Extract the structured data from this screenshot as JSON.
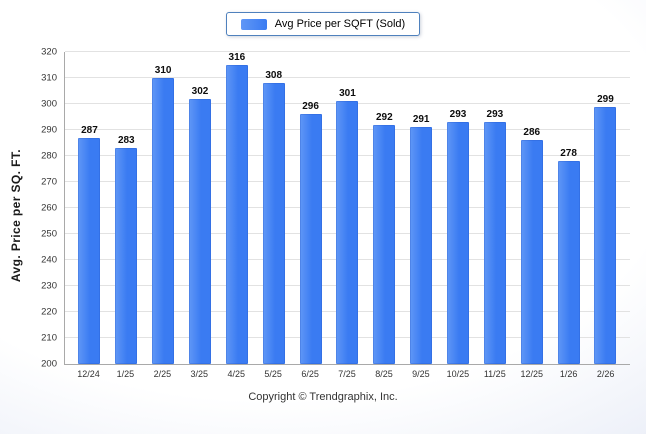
{
  "legend": {
    "swatch": "bar-color-swatch"
  },
  "footer": {
    "text": "Copyright © Trendgraphix, Inc."
  },
  "chart_data": {
    "type": "bar",
    "legend_label": "Avg Price per SQFT (Sold)",
    "categories": [
      "12/24",
      "1/25",
      "2/25",
      "3/25",
      "4/25",
      "5/25",
      "6/25",
      "7/25",
      "8/25",
      "9/25",
      "10/25",
      "11/25",
      "12/25",
      "1/26",
      "2/26"
    ],
    "values": [
      287,
      283,
      310,
      302,
      316,
      308,
      296,
      301,
      292,
      291,
      293,
      293,
      286,
      278,
      299
    ],
    "title": "Avg Price per SQFT (Sold)",
    "xlabel": "",
    "ylabel": "Avg. Price per SQ. FT.",
    "ylim": [
      200,
      320
    ],
    "ytick_step": 10,
    "grid": true,
    "legend_position": "top-center",
    "bar_color": "#3a7bf2",
    "bar_color_light": "#6097f6"
  }
}
